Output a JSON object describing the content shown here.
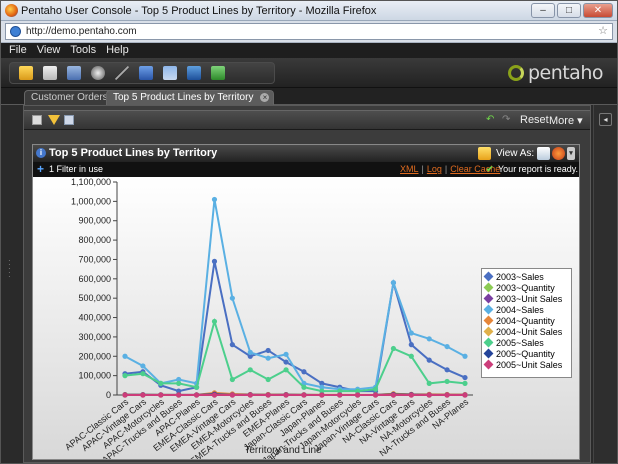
{
  "window": {
    "title": "Pentaho User Console - Top 5 Product Lines by Territory - Mozilla Firefox",
    "url": "http://demo.pentaho.com"
  },
  "menu": [
    "File",
    "View",
    "Tools",
    "Help"
  ],
  "brand": {
    "logo_text": "pentaho"
  },
  "tabs": [
    {
      "label": "Customer Orders"
    },
    {
      "label": "Top 5 Product Lines by Territory"
    }
  ],
  "content_toolbar": {
    "reset": "Reset",
    "more": "More"
  },
  "report": {
    "title": "Top 5 Product Lines by Territory",
    "view_as": "View As:",
    "filter_text": "1 Filter in use",
    "links": [
      "XML",
      "Log",
      "Clear Cache"
    ],
    "status": "Your report is ready."
  },
  "colors": {
    "accent": "#e06b1f",
    "ok": "#6fd34a",
    "logo_green": "#8aa21a"
  },
  "chart_data": {
    "type": "line",
    "xlabel": "Territory and Line",
    "ylabel": "",
    "ylim": [
      0,
      1100000
    ],
    "yticks": [
      "0",
      "100,000",
      "200,000",
      "300,000",
      "400,000",
      "500,000",
      "600,000",
      "700,000",
      "800,000",
      "900,000",
      "1,000,000",
      "1,100,000"
    ],
    "categories": [
      "APAC-Classic Cars",
      "APAC-Vintage Cars",
      "APAC-Motorcycles",
      "APAC-Trucks and Buses",
      "APAC-Planes",
      "EMEA-Classic Cars",
      "EMEA-Vintage Cars",
      "EMEA-Motorcycles",
      "EMEA-Trucks and Buses",
      "EMEA-Planes",
      "Japan-Classic Cars",
      "Japan-Planes",
      "Japan-Trucks and Buses",
      "Japan-Motorcycles",
      "Japan-Vintage Cars",
      "NA-Classic Cars",
      "NA-Vintage Cars",
      "NA-Motorcycles",
      "NA-Trucks and Buses",
      "NA-Planes"
    ],
    "series": [
      {
        "name": "2003~Sales",
        "color": "#4a6fc2",
        "values": [
          110000,
          120000,
          50000,
          20000,
          40000,
          690000,
          260000,
          200000,
          230000,
          170000,
          120000,
          60000,
          40000,
          20000,
          20000,
          580000,
          260000,
          180000,
          130000,
          90000
        ]
      },
      {
        "name": "2003~Quantity",
        "color": "#8ccb54",
        "values": [
          1200,
          1300,
          600,
          300,
          500,
          7400,
          2900,
          2200,
          2500,
          1900,
          1300,
          700,
          500,
          300,
          300,
          6200,
          2800,
          2000,
          1500,
          1000
        ]
      },
      {
        "name": "2003~Unit Sales",
        "color": "#7a3fa1",
        "values": [
          100,
          110,
          60,
          40,
          50,
          120,
          100,
          90,
          95,
          80,
          70,
          60,
          50,
          40,
          40,
          110,
          90,
          80,
          70,
          60
        ]
      },
      {
        "name": "2004~Sales",
        "color": "#5ab0e3",
        "values": [
          200000,
          150000,
          60000,
          80000,
          60000,
          1010000,
          500000,
          220000,
          190000,
          210000,
          60000,
          40000,
          30000,
          30000,
          40000,
          580000,
          320000,
          290000,
          250000,
          200000
        ]
      },
      {
        "name": "2004~Quantity",
        "color": "#e6863a",
        "values": [
          2100,
          1600,
          700,
          900,
          700,
          10800,
          5400,
          2400,
          2100,
          2300,
          700,
          500,
          400,
          400,
          500,
          6300,
          3400,
          3100,
          2700,
          2200
        ]
      },
      {
        "name": "2004~Unit Sales",
        "color": "#e0b04a",
        "values": [
          120,
          130,
          70,
          60,
          60,
          140,
          120,
          100,
          100,
          90,
          80,
          70,
          60,
          50,
          50,
          130,
          110,
          100,
          90,
          80
        ]
      },
      {
        "name": "2005~Sales",
        "color": "#4ccf8c",
        "values": [
          100000,
          110000,
          60000,
          60000,
          40000,
          380000,
          80000,
          130000,
          80000,
          130000,
          40000,
          20000,
          20000,
          20000,
          30000,
          240000,
          200000,
          60000,
          70000,
          60000
        ]
      },
      {
        "name": "2005~Quantity",
        "color": "#24449a",
        "values": [
          1100,
          1200,
          700,
          700,
          500,
          4100,
          900,
          1400,
          900,
          1400,
          500,
          300,
          300,
          300,
          400,
          2600,
          2200,
          700,
          800,
          700
        ]
      },
      {
        "name": "2005~Unit Sales",
        "color": "#cc3d7a",
        "values": [
          90,
          100,
          60,
          50,
          40,
          100,
          80,
          70,
          70,
          60,
          50,
          40,
          40,
          30,
          30,
          90,
          80,
          60,
          60,
          50
        ]
      }
    ]
  }
}
